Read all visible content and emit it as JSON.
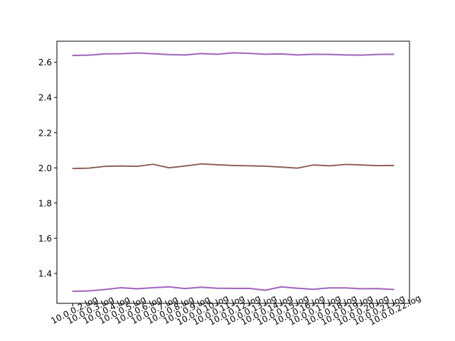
{
  "chart_data": {
    "type": "line",
    "title": "",
    "xlabel": "",
    "ylabel": "",
    "ylim": [
      1.23,
      2.72
    ],
    "yticks": [
      1.4,
      1.6,
      1.8,
      2.0,
      2.2,
      2.4,
      2.6
    ],
    "ytick_labels": [
      "1.4",
      "1.6",
      "1.8",
      "2.0",
      "2.2",
      "2.4",
      "2.6"
    ],
    "grid": false,
    "legend": "none",
    "categories": [
      "10.0.0.2.log",
      "10.0.0.3.log",
      "10.0.0.4.log",
      "10.0.0.5.log",
      "10.0.0.6.log",
      "10.0.0.7.log",
      "10.0.0.8.log",
      "10.0.0.9.log",
      "10.0.0.10.log",
      "10.0.0.11.log",
      "10.0.0.12.log",
      "10.0.0.13.log",
      "10.0.0.14.log",
      "10.0.0.15.log",
      "10.0.0.16.log",
      "10.0.0.17.log",
      "10.0.0.18.log",
      "10.0.0.19.log",
      "10.0.0.20.log",
      "10.0.0.21.log",
      "10.0.0.22.log"
    ],
    "series": [
      {
        "color": "#e377c2",
        "values": [
          2.64,
          2.642,
          2.649,
          2.65,
          2.654,
          2.65,
          2.645,
          2.643,
          2.651,
          2.647,
          2.655,
          2.652,
          2.647,
          2.649,
          2.643,
          2.647,
          2.646,
          2.643,
          2.642,
          2.646,
          2.647
        ]
      },
      {
        "color": "#9467bd",
        "values": [
          2.638,
          2.64,
          2.647,
          2.648,
          2.652,
          2.648,
          2.643,
          2.641,
          2.649,
          2.645,
          2.653,
          2.65,
          2.645,
          2.647,
          2.641,
          2.645,
          2.644,
          2.641,
          2.64,
          2.644,
          2.645
        ]
      },
      {
        "color": "#7f7f7f",
        "values": [
          1.996,
          1.998,
          2.008,
          2.01,
          2.008,
          2.02,
          2.0,
          2.01,
          2.022,
          2.017,
          2.013,
          2.011,
          2.009,
          2.004,
          1.998,
          2.016,
          2.011,
          2.019,
          2.016,
          2.012,
          2.013
        ]
      },
      {
        "color": "#8c564b",
        "values": [
          1.997,
          1.999,
          2.009,
          2.011,
          2.009,
          2.021,
          2.001,
          2.011,
          2.023,
          2.018,
          2.014,
          2.012,
          2.01,
          2.005,
          1.999,
          2.017,
          2.012,
          2.02,
          2.017,
          2.013,
          2.014
        ]
      },
      {
        "color": "#e377c2",
        "values": [
          1.3,
          1.302,
          1.31,
          1.32,
          1.314,
          1.32,
          1.325,
          1.315,
          1.323,
          1.317,
          1.316,
          1.316,
          1.306,
          1.325,
          1.317,
          1.311,
          1.319,
          1.319,
          1.314,
          1.315,
          1.31
        ]
      },
      {
        "color": "#9467bd",
        "values": [
          1.298,
          1.3,
          1.308,
          1.318,
          1.312,
          1.318,
          1.323,
          1.313,
          1.321,
          1.315,
          1.314,
          1.314,
          1.304,
          1.323,
          1.315,
          1.309,
          1.317,
          1.317,
          1.312,
          1.313,
          1.308
        ]
      }
    ]
  }
}
